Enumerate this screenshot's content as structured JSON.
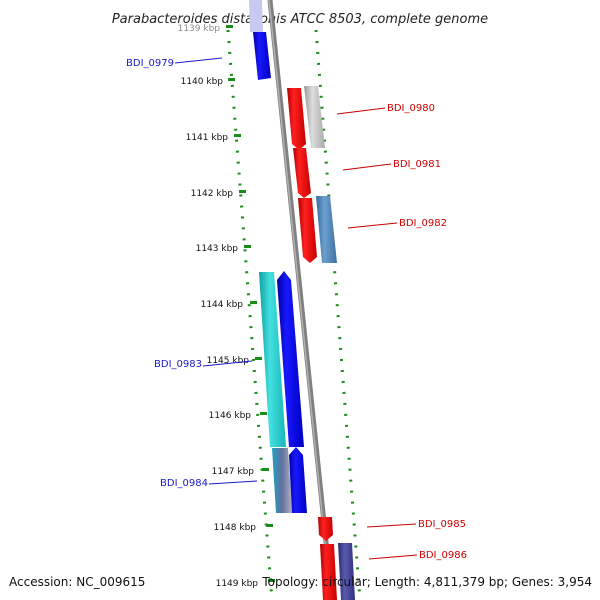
{
  "title": "Parabacteroides distasonis ATCC 8503, complete genome",
  "ruler": {
    "ticks": [
      "1139 kbp",
      "1140 kbp",
      "1141 kbp",
      "1142 kbp",
      "1143 kbp",
      "1144 kbp",
      "1145 kbp",
      "1146 kbp",
      "1147 kbp",
      "1148 kbp",
      "1149 kbp"
    ]
  },
  "genes": [
    {
      "label": "BDI_0979",
      "color": "#1a1acc"
    },
    {
      "label": "BDI_0980",
      "color": "#cc0000"
    },
    {
      "label": "BDI_0981",
      "color": "#cc0000"
    },
    {
      "label": "BDI_0982",
      "color": "#cc0000"
    },
    {
      "label": "BDI_0983",
      "color": "#1a1acc"
    },
    {
      "label": "BDI_0984",
      "color": "#1a1acc"
    },
    {
      "label": "BDI_0985",
      "color": "#cc0000"
    },
    {
      "label": "BDI_0986",
      "color": "#cc0000"
    }
  ],
  "footer": {
    "accession": "Accession: NC_009615",
    "summary": "Topology: circular; Length: 4,811,379 bp; Genes: 3,954"
  },
  "colors": {
    "forward": "#ff0000",
    "reverse": "#0000ff",
    "cyan": "#22cccc",
    "grey_gene": "#bbbbbb",
    "steel": "#4a7fb0",
    "navy": "#3a3a88",
    "dots": "#1a8c1a",
    "backbone": "#808080"
  }
}
